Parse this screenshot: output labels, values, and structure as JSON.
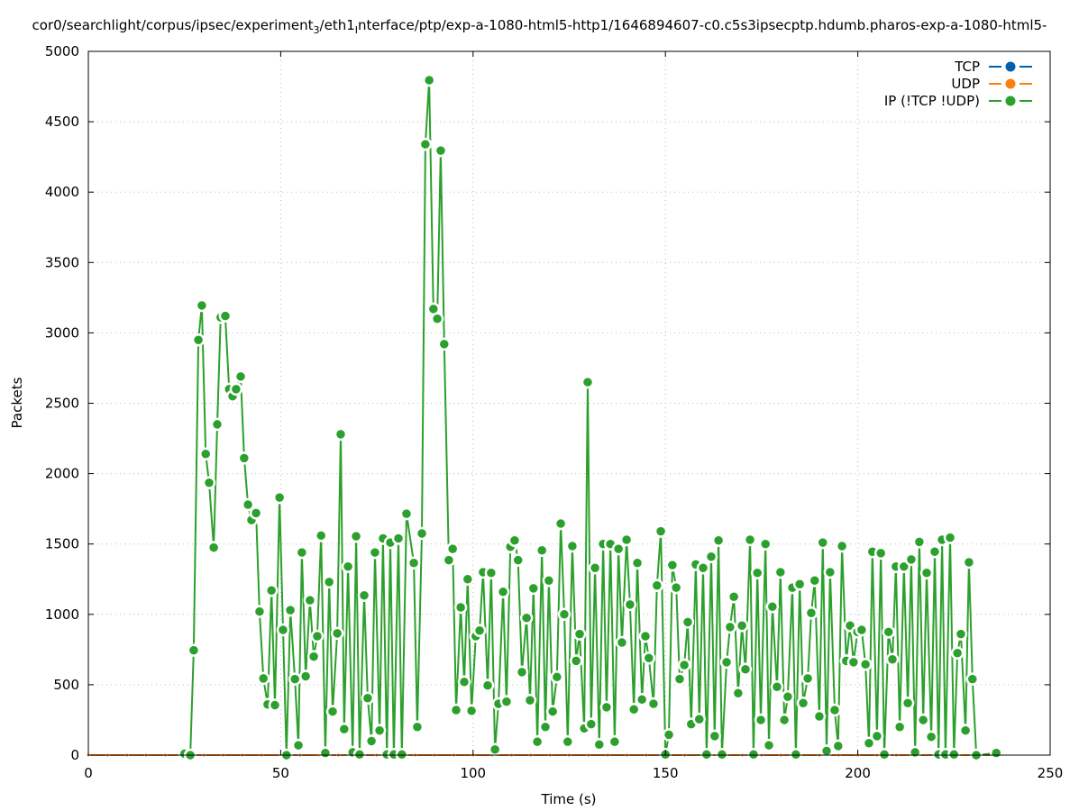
{
  "chart_data": {
    "type": "line",
    "title_parts": [
      "cor0/searchlight/corpus/ipsec/experiment",
      "3",
      "/eth1",
      "I",
      "nterface/ptp/exp-a-1080-html5-http1/1646894607-c0.c5s3ipsecptp.hdumb.pharos-exp-a-1080-html5-"
    ],
    "xlabel": "Time (s)",
    "ylabel": "Packets",
    "xlim": [
      0,
      250
    ],
    "ylim": [
      0,
      5000
    ],
    "xticks": [
      0,
      50,
      100,
      150,
      200,
      250
    ],
    "yticks": [
      0,
      500,
      1000,
      1500,
      2000,
      2500,
      3000,
      3500,
      4000,
      4500,
      5000
    ],
    "grid": true,
    "legend_position": "top-right",
    "series": [
      {
        "name": "TCP",
        "color": "#0060ad",
        "x": [
          0,
          5,
          10,
          15,
          20,
          25,
          30,
          35,
          40,
          45,
          50,
          55,
          60,
          65,
          70,
          75,
          80,
          85,
          90,
          95,
          100,
          105,
          110,
          115,
          120,
          125,
          130,
          135,
          140,
          145,
          150,
          155,
          160,
          165,
          170,
          175,
          180,
          185,
          190,
          195,
          200,
          205,
          210,
          215,
          220,
          225,
          230,
          235
        ],
        "y": [
          0,
          0,
          0,
          0,
          0,
          0,
          0,
          0,
          0,
          0,
          0,
          0,
          0,
          0,
          0,
          0,
          0,
          0,
          0,
          0,
          0,
          0,
          0,
          0,
          0,
          0,
          0,
          0,
          0,
          0,
          0,
          0,
          0,
          0,
          0,
          0,
          0,
          0,
          0,
          0,
          0,
          0,
          0,
          0,
          0,
          0,
          0,
          0
        ]
      },
      {
        "name": "UDP",
        "color": "#ff7f0e",
        "x": [
          0,
          5,
          10,
          15,
          20,
          25,
          30,
          35,
          40,
          45,
          50,
          55,
          60,
          65,
          70,
          75,
          80,
          85,
          90,
          95,
          100,
          105,
          110,
          115,
          120,
          125,
          130,
          135,
          140,
          145,
          150,
          155,
          160,
          165,
          170,
          175,
          180,
          185,
          190,
          195,
          200,
          205,
          210,
          215,
          220,
          225,
          230,
          235
        ],
        "y": [
          0,
          0,
          0,
          0,
          0,
          0,
          0,
          0,
          0,
          0,
          0,
          0,
          0,
          0,
          0,
          0,
          0,
          0,
          0,
          0,
          0,
          0,
          0,
          0,
          0,
          0,
          0,
          0,
          0,
          0,
          0,
          0,
          0,
          0,
          0,
          0,
          0,
          0,
          0,
          0,
          0,
          0,
          0,
          0,
          0,
          0,
          0,
          0
        ]
      },
      {
        "name": "IP (!TCP  !UDP)",
        "color": "#2ca02c",
        "x": [
          25,
          26.5,
          27.4,
          28.6,
          29.5,
          30.5,
          31.4,
          32.6,
          33.5,
          34.4,
          35.6,
          36.6,
          37.5,
          38.4,
          39.6,
          40.5,
          41.5,
          42.4,
          43.6,
          44.5,
          45.5,
          46.6,
          47.6,
          48.5,
          49.7,
          50.6,
          51.5,
          52.5,
          53.7,
          54.6,
          55.5,
          56.5,
          57.6,
          58.6,
          59.5,
          60.5,
          61.6,
          62.6,
          63.5,
          64.7,
          65.6,
          66.5,
          67.5,
          68.7,
          69.6,
          70.5,
          71.7,
          72.6,
          73.6,
          74.5,
          75.7,
          76.6,
          77.6,
          78.5,
          79.4,
          80.6,
          81.5,
          82.7,
          84.6,
          85.5,
          86.7,
          87.6,
          88.6,
          89.7,
          90.7,
          91.6,
          92.5,
          93.7,
          94.7,
          95.6,
          96.8,
          97.7,
          98.6,
          99.6,
          100.7,
          101.7,
          102.6,
          103.8,
          104.7,
          105.7,
          106.6,
          107.8,
          108.7,
          109.7,
          110.8,
          111.7,
          112.7,
          113.9,
          114.8,
          115.7,
          116.7,
          117.9,
          118.8,
          119.7,
          120.7,
          121.8,
          122.8,
          123.7,
          124.6,
          125.8,
          126.8,
          127.7,
          128.9,
          129.8,
          130.7,
          131.7,
          132.8,
          133.8,
          134.7,
          135.7,
          136.8,
          137.8,
          138.7,
          139.9,
          140.8,
          141.8,
          142.7,
          143.9,
          144.8,
          145.7,
          146.9,
          147.8,
          148.8,
          150,
          150.9,
          151.8,
          152.8,
          153.7,
          154.9,
          155.8,
          156.7,
          157.9,
          158.8,
          159.8,
          160.7,
          161.9,
          162.8,
          163.8,
          164.7,
          165.9,
          166.8,
          167.8,
          168.9,
          169.9,
          170.8,
          172,
          172.9,
          173.9,
          174.8,
          176,
          176.9,
          177.8,
          179,
          179.9,
          180.9,
          181.8,
          183,
          183.9,
          184.9,
          185.8,
          187,
          187.9,
          188.8,
          190,
          190.9,
          191.9,
          192.8,
          194,
          194.9,
          195.9,
          197,
          198,
          198.9,
          199.9,
          201,
          202,
          202.9,
          203.8,
          205,
          206,
          206.9,
          208,
          209,
          209.9,
          210.9,
          212,
          213,
          213.9,
          214.9,
          216,
          217,
          217.9,
          219.1,
          220,
          221,
          221.9,
          222.8,
          224,
          225,
          225.9,
          226.8,
          228,
          228.9,
          229.8,
          230.8,
          236
        ],
        "y": [
          10,
          0,
          745,
          2950,
          3195,
          2140,
          1935,
          1475,
          2350,
          3110,
          3120,
          2600,
          2550,
          2600,
          2690,
          2110,
          1780,
          1670,
          1720,
          1020,
          545,
          360,
          1170,
          355,
          1830,
          890,
          0,
          1030,
          540,
          70,
          1440,
          560,
          1100,
          700,
          845,
          1560,
          15,
          1230,
          310,
          865,
          2280,
          185,
          1340,
          20,
          1555,
          5,
          1135,
          405,
          100,
          1440,
          175,
          1540,
          5,
          1510,
          5,
          1540,
          5,
          1715,
          1365,
          200,
          1575,
          4340,
          4795,
          3170,
          3100,
          4295,
          2920,
          1385,
          1465,
          320,
          1050,
          520,
          1250,
          315,
          845,
          885,
          1300,
          495,
          1295,
          40,
          365,
          1160,
          380,
          1480,
          1525,
          1385,
          590,
          975,
          390,
          1185,
          95,
          1455,
          200,
          1240,
          310,
          555,
          1645,
          1000,
          95,
          1485,
          670,
          860,
          190,
          2650,
          220,
          1330,
          75,
          1500,
          340,
          1500,
          95,
          1465,
          800,
          1530,
          1070,
          325,
          1365,
          395,
          845,
          690,
          365,
          1205,
          1590,
          5,
          145,
          1350,
          1190,
          540,
          640,
          945,
          220,
          1355,
          255,
          1330,
          5,
          1410,
          135,
          1525,
          5,
          660,
          910,
          1125,
          440,
          920,
          610,
          1530,
          5,
          1295,
          250,
          1500,
          70,
          1055,
          485,
          1300,
          250,
          415,
          1190,
          5,
          1215,
          370,
          545,
          1010,
          1240,
          275,
          1510,
          30,
          1300,
          320,
          65,
          1485,
          670,
          920,
          660,
          875,
          890,
          645,
          85,
          1445,
          135,
          1435,
          5,
          875,
          680,
          1340,
          200,
          1340,
          370,
          1390,
          20,
          1515,
          250,
          1295,
          130,
          1445,
          5,
          1530,
          5,
          1545,
          5,
          725,
          860,
          175,
          1370,
          540,
          0,
          15
        ]
      }
    ]
  }
}
